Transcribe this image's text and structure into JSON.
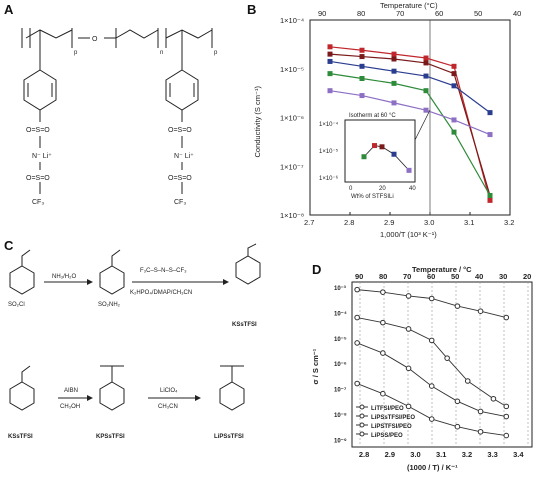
{
  "panels": {
    "A": "A",
    "B": "B",
    "C": "C",
    "D": "D"
  },
  "panel_a": {
    "oxygen": "O",
    "subscripts": {
      "p": "p",
      "n": "n"
    },
    "lithium_left": "N⁻ Li⁺",
    "lithium_right": "N⁻ Li⁺",
    "cf3": "CF₃",
    "so2_top": "O=S=O",
    "so2_bottom": "O=S=O"
  },
  "panel_c": {
    "step1": "NH₃/H₂O",
    "step2_reagent": "F₃C–S–N–S–CF₃",
    "step2_conditions": "K₂HPO₄/DMAP/CH₃CN",
    "sm1": "SO₂Cl",
    "int1": "SO₂NH₂",
    "prod1": "KSsTFSI",
    "step3a": "AIBN",
    "step3b": "CH₃OH",
    "step4a": "LiClO₄",
    "step4b": "CH₃CN",
    "mono": "KSsTFSI",
    "poly_k": "KPSsTFSI",
    "poly_li": "LiPSsTFSI"
  },
  "chart_data": [
    {
      "type": "line",
      "panel": "B",
      "xlabel": "1,000/T (10³ K⁻¹)",
      "x2label": "Temperature (°C)",
      "ylabel": "Conductivity (S cm⁻¹)",
      "xlim": [
        2.7,
        3.2
      ],
      "ylim_log10": [
        -8,
        -4
      ],
      "x_ticks": [
        "2.7",
        "2.8",
        "2.9",
        "3.0",
        "3.1",
        "3.2"
      ],
      "x2_ticks": [
        "90",
        "80",
        "70",
        "60",
        "50",
        "40"
      ],
      "y_ticks": [
        "1×10⁻⁴",
        "1×10⁻⁵",
        "1×10⁻⁶",
        "1×10⁻⁷",
        "1×10⁻⁸"
      ],
      "series": [
        {
          "color": "#c0272d",
          "x": [
            2.75,
            2.83,
            2.91,
            2.99,
            3.06,
            3.15
          ],
          "log10y": [
            -4.55,
            -4.62,
            -4.7,
            -4.78,
            -4.95,
            -7.7
          ]
        },
        {
          "color": "#7a1a1a",
          "x": [
            2.75,
            2.83,
            2.91,
            2.99,
            3.06,
            3.15
          ],
          "log10y": [
            -4.7,
            -4.75,
            -4.8,
            -4.88,
            -5.1,
            -7.6
          ]
        },
        {
          "color": "#2a3d8f",
          "x": [
            2.75,
            2.83,
            2.91,
            2.99,
            3.06,
            3.15
          ],
          "log10y": [
            -4.85,
            -4.95,
            -5.05,
            -5.15,
            -5.35,
            -5.9
          ]
        },
        {
          "color": "#2e8b3a",
          "x": [
            2.75,
            2.83,
            2.91,
            2.99,
            3.06,
            3.15
          ],
          "log10y": [
            -5.1,
            -5.2,
            -5.3,
            -5.45,
            -6.3,
            -7.6
          ]
        },
        {
          "color": "#8d6fc4",
          "x": [
            2.75,
            2.83,
            2.91,
            2.99,
            3.06,
            3.15
          ],
          "log10y": [
            -5.45,
            -5.55,
            -5.7,
            -5.85,
            -6.05,
            -6.35
          ]
        }
      ],
      "inset": {
        "title": "Isotherm at 60 °C",
        "xlabel": "Wt% of STFSILi",
        "x_ticks": [
          "0",
          "20",
          "40"
        ],
        "y_ticks": [
          "1×10⁻⁴",
          "1×10⁻⁵",
          "1×10⁻⁶"
        ],
        "points": [
          {
            "x": 10,
            "log10y": -5.4,
            "color": "#2e8b3a"
          },
          {
            "x": 17,
            "log10y": -4.95,
            "color": "#c0272d"
          },
          {
            "x": 22,
            "log10y": -5.0,
            "color": "#7a1a1a"
          },
          {
            "x": 30,
            "log10y": -5.3,
            "color": "#2a3d8f"
          },
          {
            "x": 40,
            "log10y": -5.95,
            "color": "#8d6fc4"
          }
        ]
      }
    },
    {
      "type": "line",
      "panel": "D",
      "xlabel": "(1000 / T) / K⁻¹",
      "x2label": "Temperature / °C",
      "ylabel": "σ / S cm⁻¹",
      "xlim": [
        2.75,
        3.45
      ],
      "ylim_log10": [
        -9.3,
        -2.8
      ],
      "x_ticks": [
        "2.8",
        "2.9",
        "3.0",
        "3.1",
        "3.2",
        "3.3",
        "3.4"
      ],
      "x2_ticks": [
        "90",
        "80",
        "70",
        "60",
        "50",
        "40",
        "30",
        "20"
      ],
      "y_ticks": [
        "10⁻³",
        "10⁻⁴",
        "10⁻⁵",
        "10⁻⁶",
        "10⁻⁷",
        "10⁻⁸",
        "10⁻⁹"
      ],
      "legend": [
        "LiTFSI/PEO",
        "LiPSsTFSI/PEO",
        "LiPSTFSI/PEO",
        "LiPSS/PEO"
      ],
      "series": [
        {
          "name": "LiTFSI/PEO",
          "marker": "circle",
          "x": [
            2.77,
            2.87,
            2.97,
            3.06,
            3.16,
            3.25,
            3.35
          ],
          "log10y": [
            -3.1,
            -3.2,
            -3.35,
            -3.45,
            -3.75,
            -3.95,
            -4.2
          ]
        },
        {
          "name": "LiPSsTFSI/PEO",
          "marker": "circle",
          "x": [
            2.77,
            2.87,
            2.97,
            3.06,
            3.12,
            3.2,
            3.3,
            3.35
          ],
          "log10y": [
            -4.2,
            -4.4,
            -4.65,
            -5.1,
            -5.8,
            -6.7,
            -7.4,
            -7.7
          ]
        },
        {
          "name": "LiPSTFSI/PEO",
          "marker": "circle",
          "x": [
            2.77,
            2.87,
            2.97,
            3.06,
            3.16,
            3.25,
            3.35
          ],
          "log10y": [
            -5.2,
            -5.6,
            -6.2,
            -6.9,
            -7.5,
            -7.9,
            -8.1
          ]
        },
        {
          "name": "LiPSS/PEO",
          "marker": "circle",
          "x": [
            2.77,
            2.87,
            2.97,
            3.06,
            3.16,
            3.25,
            3.35
          ],
          "log10y": [
            -6.8,
            -7.2,
            -7.7,
            -8.2,
            -8.5,
            -8.7,
            -8.85
          ]
        }
      ]
    }
  ]
}
